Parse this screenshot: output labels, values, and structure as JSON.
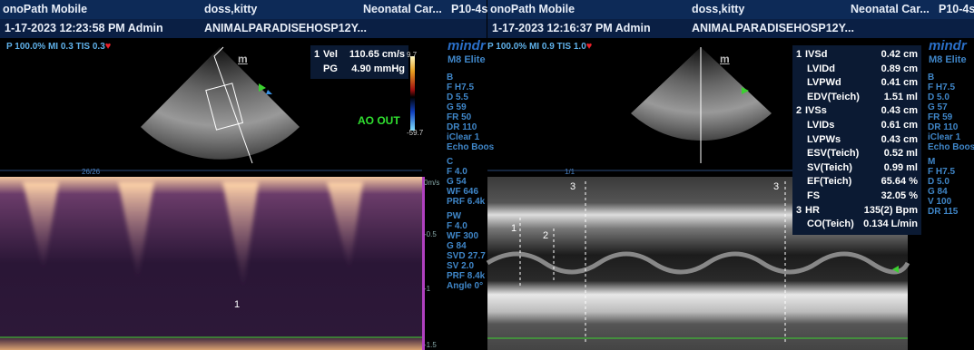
{
  "panels": [
    {
      "header": {
        "app": "onoPath Mobile",
        "patient": "doss,kitty",
        "exam": "Neonatal Car...",
        "probe": "P10-4s",
        "datetime": "1-17-2023 12:23:58 PM Admin",
        "hospital": "ANIMALPARADISEHOSP12Y..."
      },
      "info": "P 100.0% MI 0.3 TIS 0.3",
      "marker": "m",
      "measurements": [
        {
          "index": "1",
          "name": "Vel",
          "value": "110.65 cm/s"
        },
        {
          "name": "PG",
          "value": "4.90 mmHg"
        }
      ],
      "color_scale": [
        "9.7",
        "-59.7"
      ],
      "annotation": "AO OUT",
      "timeline": "26/26",
      "scale_labels": [
        "0m/s",
        "-0.5",
        "-1",
        "-1.5"
      ],
      "cursors": [
        "1"
      ],
      "brand": "mindr",
      "model": "M8 Elite",
      "param_groups": [
        [
          "B",
          "F H7.5",
          "D 5.5",
          "G 59",
          "FR 50",
          "DR 110",
          "iClear 1",
          "Echo Boos"
        ],
        [
          "C",
          "F 4.0",
          "G 54",
          "WF 646",
          "PRF 6.4k"
        ],
        [
          "PW",
          "F 4.0",
          "WF 300",
          "G 84",
          "SVD 27.7",
          "SV 2.0",
          "PRF 8.4k",
          "Angle 0°"
        ]
      ]
    },
    {
      "header": {
        "app": "onoPath Mobile",
        "patient": "doss,kitty",
        "exam": "Neonatal Car...",
        "probe": "P10-4s",
        "datetime": "1-17-2023 12:16:37 PM Admin",
        "hospital": "ANIMALPARADISEHOSP12Y..."
      },
      "info": "P 100.0% MI 0.9 TIS 1.0",
      "marker": "m",
      "measurements": [
        {
          "index": "1",
          "name": "IVSd",
          "value": "0.42 cm"
        },
        {
          "name": "LVIDd",
          "value": "0.89 cm"
        },
        {
          "name": "LVPWd",
          "value": "0.41 cm"
        },
        {
          "name": "EDV(Teich)",
          "value": "1.51 ml"
        },
        {
          "index": "2",
          "name": "IVSs",
          "value": "0.43 cm"
        },
        {
          "name": "LVIDs",
          "value": "0.61 cm"
        },
        {
          "name": "LVPWs",
          "value": "0.43 cm"
        },
        {
          "name": "ESV(Teich)",
          "value": "0.52 ml"
        },
        {
          "name": "SV(Teich)",
          "value": "0.99 ml"
        },
        {
          "name": "EF(Teich)",
          "value": "65.64 %"
        },
        {
          "name": "FS",
          "value": "32.05 %"
        },
        {
          "index": "3",
          "name": "HR",
          "value": "135(2) Bpm"
        },
        {
          "name": "CO(Teich)",
          "value": "0.134 L/min"
        }
      ],
      "timeline": "1/1",
      "cursors": [
        "3",
        "3",
        "1",
        "2"
      ],
      "brand": "mindr",
      "model": "M8 Elite",
      "param_groups": [
        [
          "B",
          "F H7.5",
          "D 5.0",
          "G 57",
          "FR 59",
          "DR 110",
          "iClear 1",
          "Echo Boos"
        ],
        [
          "M",
          "F H7.5",
          "D 5.0",
          "G 84",
          "V 100",
          "DR 115"
        ]
      ]
    }
  ]
}
